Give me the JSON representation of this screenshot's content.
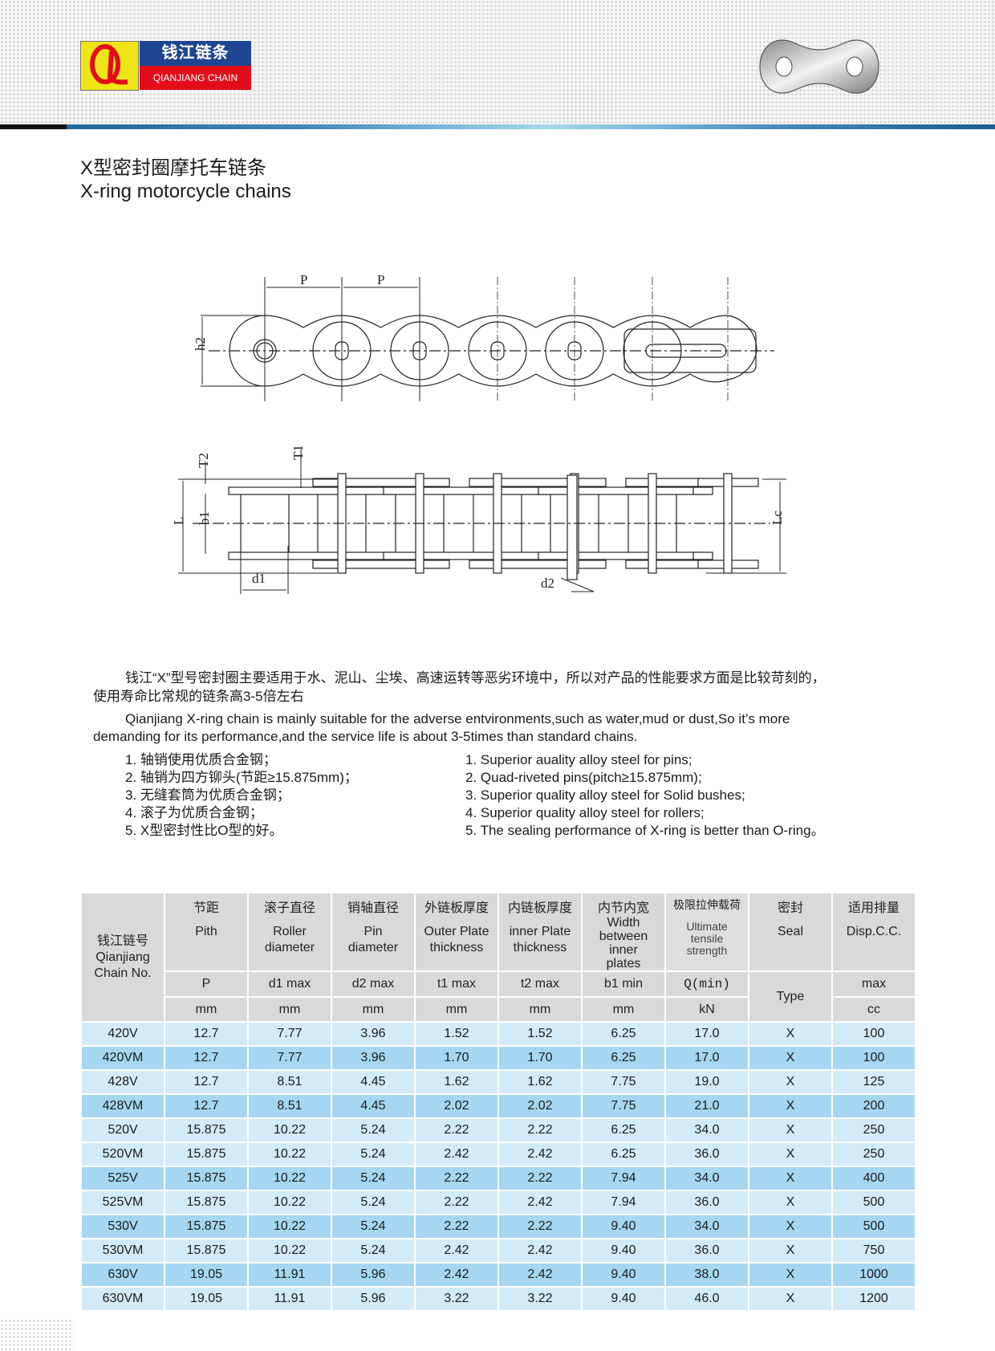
{
  "logo": {
    "cn": "钱江链条",
    "en": "QIANJIANG CHAIN",
    "mark": "QL",
    "colors": {
      "yellow": "#f0e516",
      "blue": "#1d4592",
      "red": "#e30d1a"
    }
  },
  "header": {
    "plate_icon": "chain-link-plate-icon"
  },
  "title": {
    "cn": "X型密封圈摩托车链条",
    "en": "X-ring motorcycle chains"
  },
  "diagram": {
    "labels": {
      "p1": "P",
      "p2": "P",
      "h2": "h2",
      "t2": "T2",
      "t1": "T1",
      "l": "L",
      "b1": "b1",
      "d1": "d1",
      "d2": "d2",
      "lc": "Lc"
    }
  },
  "description": {
    "cn_line1": "钱江“X”型号密封圈主要适用于水、泥山、尘埃、高速运转等恶劣环境中，所以对产品的性能要求方面是比较苛刻的，",
    "cn_line2": "使用寿命比常规的链条高3-5倍左右",
    "en_line1": "Qianjiang X-ring chain is mainly suitable for the adverse entvironments,such as water,mud or dust,So it’s more",
    "en_line2": "demanding for its performance,and the service life is about 3-5times than standard chains.",
    "features_cn": [
      "1. 轴销使用优质合金钢；",
      "2. 轴销为四方铆头(节距≥15.875mm)；",
      "3. 无缝套筒为优质合金钢；",
      "4. 滚子为优质合金钢；",
      "5. X型密封性比O型的好。"
    ],
    "features_en": [
      "1. Superior auality alloy steel for pins;",
      "2. Quad-riveted pins(pitch≥15.875mm);",
      "3. Superior quality alloy steel for Solid bushes;",
      "4. Superior quality alloy steel for rollers;",
      "5. The sealing performance of X-ring is better than O-ring。"
    ]
  },
  "table": {
    "headers": [
      {
        "cn": "钱江链号",
        "en1": "Qianjiang",
        "en2": "Chain No."
      },
      {
        "cn": "节距",
        "en1": "Pith",
        "en2": "",
        "sym": "P",
        "unit": "mm"
      },
      {
        "cn": "滚子直径",
        "en1": "Roller",
        "en2": "diameter",
        "sym": "d1 max",
        "unit": "mm"
      },
      {
        "cn": "销轴直径",
        "en1": "Pin",
        "en2": "diameter",
        "sym": "d2 max",
        "unit": "mm"
      },
      {
        "cn": "外链板厚度",
        "en1": "Outer Plate",
        "en2": "thickness",
        "sym": "t1 max",
        "unit": "mm"
      },
      {
        "cn": "内链板厚度",
        "en1": "inner Plate",
        "en2": "thickness",
        "sym": "t2 max",
        "unit": "mm"
      },
      {
        "cn": "内节内宽",
        "en1": "Width",
        "en2": "between",
        "en3": "inner",
        "en4": "plates",
        "sym": "b1 min",
        "unit": "mm"
      },
      {
        "cn": "极限拉伸载荷",
        "en1": "Ultimate",
        "en2": "tensile",
        "en3": "strength",
        "sym": "Q(min)",
        "unit": "kN"
      },
      {
        "cn": "密封",
        "en1": "Seal",
        "sym": "Type"
      },
      {
        "cn": "适用排量",
        "en1": "Disp.C.C.",
        "sym": "max",
        "unit": "cc"
      }
    ],
    "row_colors": {
      "light": "#d3ebf8",
      "dark": "#a5d7f2",
      "header": "#d9d9d9"
    },
    "rows": [
      {
        "shade": "light",
        "cells": [
          "420V",
          "12.7",
          "7.77",
          "3.96",
          "1.52",
          "1.52",
          "6.25",
          "17.0",
          "X",
          "100"
        ]
      },
      {
        "shade": "dark",
        "cells": [
          "420VM",
          "12.7",
          "7.77",
          "3.96",
          "1.70",
          "1.70",
          "6.25",
          "17.0",
          "X",
          "100"
        ]
      },
      {
        "shade": "light",
        "cells": [
          "428V",
          "12.7",
          "8.51",
          "4.45",
          "1.62",
          "1.62",
          "7.75",
          "19.0",
          "X",
          "125"
        ]
      },
      {
        "shade": "dark",
        "cells": [
          "428VM",
          "12.7",
          "8.51",
          "4.45",
          "2.02",
          "2.02",
          "7.75",
          "21.0",
          "X",
          "200"
        ]
      },
      {
        "shade": "light",
        "cells": [
          "520V",
          "15.875",
          "10.22",
          "5.24",
          "2.22",
          "2.22",
          "6.25",
          "34.0",
          "X",
          "250"
        ]
      },
      {
        "shade": "light",
        "cells": [
          "520VM",
          "15.875",
          "10.22",
          "5.24",
          "2.42",
          "2.42",
          "6.25",
          "36.0",
          "X",
          "250"
        ]
      },
      {
        "shade": "dark",
        "cells": [
          "525V",
          "15.875",
          "10.22",
          "5.24",
          "2.22",
          "2.22",
          "7.94",
          "34.0",
          "X",
          "400"
        ]
      },
      {
        "shade": "light",
        "cells": [
          "525VM",
          "15.875",
          "10.22",
          "5.24",
          "2.22",
          "2.42",
          "7.94",
          "36.0",
          "X",
          "500"
        ]
      },
      {
        "shade": "dark",
        "cells": [
          "530V",
          "15.875",
          "10.22",
          "5.24",
          "2.22",
          "2.22",
          "9.40",
          "34.0",
          "X",
          "500"
        ]
      },
      {
        "shade": "light",
        "cells": [
          "530VM",
          "15.875",
          "10.22",
          "5.24",
          "2.42",
          "2.42",
          "9.40",
          "36.0",
          "X",
          "750"
        ]
      },
      {
        "shade": "dark",
        "cells": [
          "630V",
          "19.05",
          "11.91",
          "5.96",
          "2.42",
          "2.42",
          "9.40",
          "38.0",
          "X",
          "1000"
        ]
      },
      {
        "shade": "light",
        "cells": [
          "630VM",
          "19.05",
          "11.91",
          "5.96",
          "3.22",
          "3.22",
          "9.40",
          "46.0",
          "X",
          "1200"
        ]
      }
    ]
  }
}
